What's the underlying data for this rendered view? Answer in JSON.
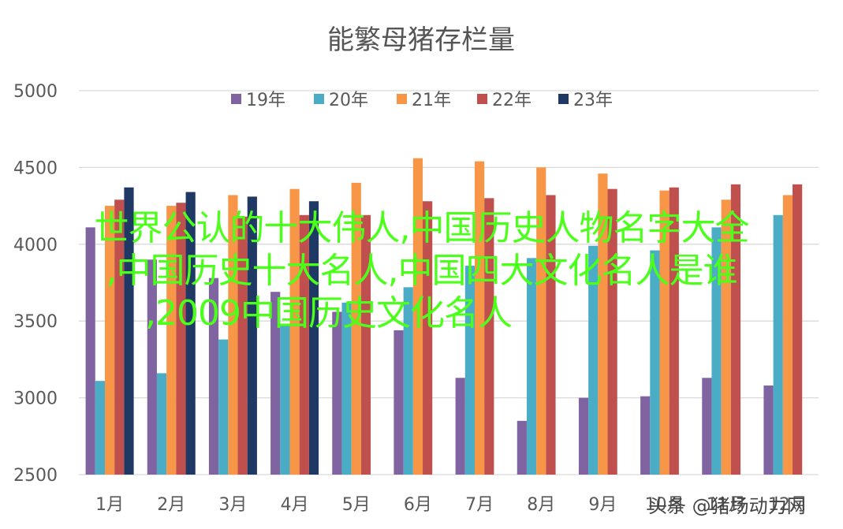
{
  "chart_data": {
    "type": "bar",
    "title": "能繁母猪存栏量",
    "categories": [
      "1月",
      "2月",
      "3月",
      "4月",
      "5月",
      "6月",
      "7月",
      "8月",
      "9月",
      "10月",
      "11月",
      "12月"
    ],
    "series": [
      {
        "name": "19年",
        "color": "#8064a2",
        "values": [
          4110,
          3900,
          3780,
          3690,
          3560,
          3440,
          3130,
          2850,
          3000,
          3010,
          3130,
          3080
        ]
      },
      {
        "name": "20年",
        "color": "#4bacc6",
        "values": [
          3110,
          3160,
          3380,
          3480,
          3620,
          3720,
          3860,
          3910,
          3990,
          3960,
          4110,
          4190
        ]
      },
      {
        "name": "21年",
        "color": "#f79646",
        "values": [
          4250,
          4250,
          4320,
          4360,
          4400,
          4560,
          4540,
          4500,
          4460,
          4350,
          4290,
          4320
        ]
      },
      {
        "name": "22年",
        "color": "#c0504d",
        "values": [
          4290,
          4270,
          4180,
          4190,
          4190,
          4280,
          4300,
          4320,
          4360,
          4370,
          4390,
          4390
        ]
      },
      {
        "name": "23年",
        "color": "#1f3864",
        "values": [
          4370,
          4340,
          4310,
          4280,
          null,
          null,
          null,
          null,
          null,
          null,
          null,
          null
        ]
      }
    ],
    "ylim": [
      2500,
      5000
    ],
    "yticks": [
      2500,
      3000,
      3500,
      4000,
      4500,
      5000
    ],
    "grid": true,
    "legend": "top"
  },
  "overlay": {
    "line1": "世界公认的十大伟人,中国历史人物名字大全",
    "line2": ",中国历史十大名人,中国四大文化名人是谁",
    "line3": ",2009中国历史文化名人"
  },
  "watermark": "头条 @猪场动力网"
}
